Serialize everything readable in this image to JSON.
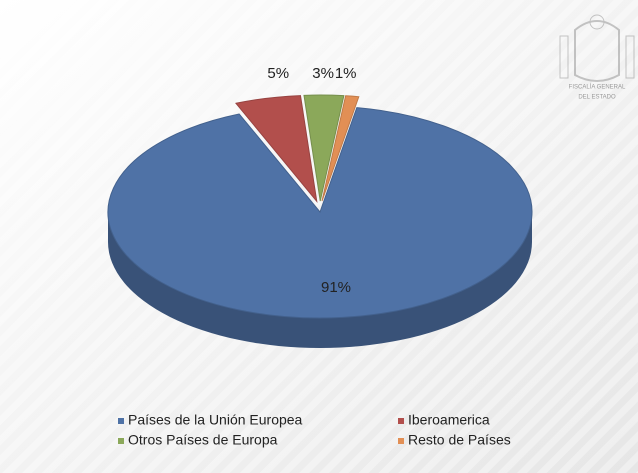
{
  "chart_data": {
    "type": "pie3d",
    "categories": [
      "Países de la Unión Europea",
      "Iberoamerica",
      "Otros Países de Europa",
      "Resto de Países"
    ],
    "values": [
      91,
      5,
      3,
      1
    ],
    "value_labels": [
      "91%",
      "5%",
      "3%",
      "1%"
    ],
    "colors": [
      "#4f72a6",
      "#b24f4c",
      "#8ba85a",
      "#e28f55"
    ],
    "legend": "bottom"
  },
  "logo_text": [
    "FISCALÍA GENERAL",
    "DEL ESTADO"
  ]
}
